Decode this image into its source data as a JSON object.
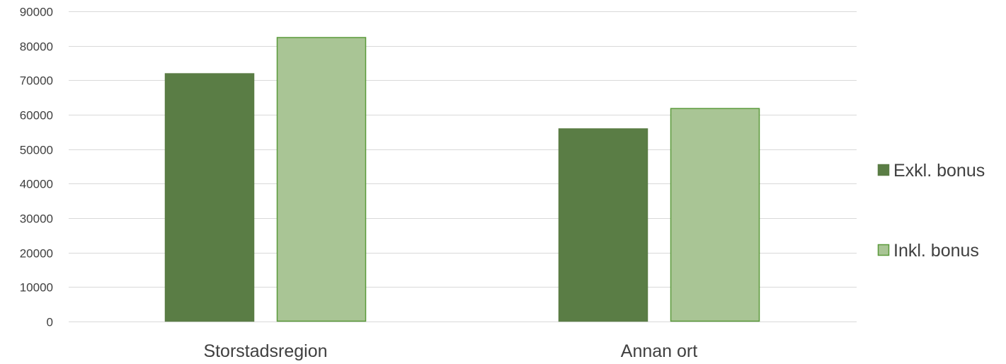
{
  "chart_data": {
    "type": "bar",
    "title": "",
    "xlabel": "",
    "ylabel": "",
    "categories": [
      "Storstadsregion",
      "Annan ort"
    ],
    "series": [
      {
        "name": "Exkl. bonus",
        "values": [
          72000,
          56000
        ],
        "color": "#5a7d45",
        "border_color": "#5a7d45"
      },
      {
        "name": "Inkl. bonus",
        "values": [
          82500,
          61900
        ],
        "color": "#a9c595",
        "border_color": "#5a9a3a"
      }
    ],
    "ylim": [
      0,
      90000
    ],
    "yticks": [
      0,
      10000,
      20000,
      30000,
      40000,
      50000,
      60000,
      70000,
      80000,
      90000
    ],
    "grid": true,
    "legend_position": "right"
  }
}
